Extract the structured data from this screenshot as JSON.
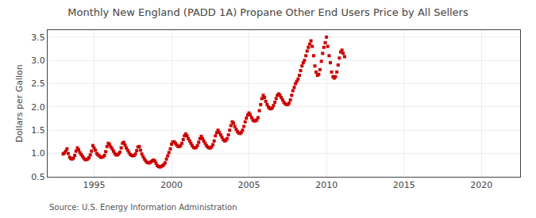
{
  "chart_data": {
    "type": "scatter",
    "title": "Monthly New England (PADD 1A) Propane Other End Users Price by All Sellers",
    "ylabel": "Dollars per Gallon",
    "annotations": [
      "Source: U.S. Energy Information Administration"
    ],
    "color": "#cc0000",
    "marker": "square",
    "grid": true,
    "xlim": [
      1992.0,
      2022.5
    ],
    "ylim": [
      0.5,
      3.65
    ],
    "xticks": [
      1995,
      2000,
      2005,
      2010,
      2015,
      2020
    ],
    "yticks": [
      0.5,
      {
        "value": 1.0,
        "label": "1.0"
      },
      1.5,
      {
        "value": 2.0,
        "label": "2.0"
      },
      2.5,
      {
        "value": 3.0,
        "label": "3.0"
      },
      3.5
    ],
    "x": [
      1993.0,
      1993.08,
      1993.17,
      1993.25,
      1993.33,
      1993.42,
      1993.5,
      1993.58,
      1993.67,
      1993.75,
      1993.83,
      1993.92,
      1994.0,
      1994.08,
      1994.17,
      1994.25,
      1994.33,
      1994.42,
      1994.5,
      1994.58,
      1994.67,
      1994.75,
      1994.83,
      1994.92,
      1995.0,
      1995.08,
      1995.17,
      1995.25,
      1995.33,
      1995.42,
      1995.5,
      1995.58,
      1995.67,
      1995.75,
      1995.83,
      1995.92,
      1996.0,
      1996.08,
      1996.17,
      1996.25,
      1996.33,
      1996.42,
      1996.5,
      1996.58,
      1996.67,
      1996.75,
      1996.83,
      1996.92,
      1997.0,
      1997.08,
      1997.17,
      1997.25,
      1997.33,
      1997.42,
      1997.5,
      1997.58,
      1997.67,
      1997.75,
      1997.83,
      1997.92,
      1998.0,
      1998.08,
      1998.17,
      1998.25,
      1998.33,
      1998.42,
      1998.5,
      1998.58,
      1998.67,
      1998.75,
      1998.83,
      1998.92,
      1999.0,
      1999.08,
      1999.17,
      1999.25,
      1999.33,
      1999.42,
      1999.5,
      1999.58,
      1999.67,
      1999.75,
      1999.83,
      1999.92,
      2000.0,
      2000.08,
      2000.17,
      2000.25,
      2000.33,
      2000.42,
      2000.5,
      2000.58,
      2000.67,
      2000.75,
      2000.83,
      2000.92,
      2001.0,
      2001.08,
      2001.17,
      2001.25,
      2001.33,
      2001.42,
      2001.5,
      2001.58,
      2001.67,
      2001.75,
      2001.83,
      2001.92,
      2002.0,
      2002.08,
      2002.17,
      2002.25,
      2002.33,
      2002.42,
      2002.5,
      2002.58,
      2002.67,
      2002.75,
      2002.83,
      2002.92,
      2003.0,
      2003.08,
      2003.17,
      2003.25,
      2003.33,
      2003.42,
      2003.5,
      2003.58,
      2003.67,
      2003.75,
      2003.83,
      2003.92,
      2004.0,
      2004.08,
      2004.17,
      2004.25,
      2004.33,
      2004.42,
      2004.5,
      2004.58,
      2004.67,
      2004.75,
      2004.83,
      2004.92,
      2005.0,
      2005.08,
      2005.17,
      2005.25,
      2005.33,
      2005.42,
      2005.5,
      2005.58,
      2005.67,
      2005.75,
      2005.83,
      2005.92,
      2006.0,
      2006.08,
      2006.17,
      2006.25,
      2006.33,
      2006.42,
      2006.5,
      2006.58,
      2006.67,
      2006.75,
      2006.83,
      2006.92,
      2007.0,
      2007.08,
      2007.17,
      2007.25,
      2007.33,
      2007.42,
      2007.5,
      2007.58,
      2007.67,
      2007.75,
      2007.83,
      2007.92,
      2008.0,
      2008.08,
      2008.17,
      2008.25,
      2008.33,
      2008.42,
      2008.5,
      2008.58,
      2008.67,
      2008.75,
      2008.83,
      2008.92,
      2009.0,
      2009.08,
      2009.17,
      2009.25,
      2009.33,
      2009.42,
      2009.5,
      2009.58,
      2009.67,
      2009.75,
      2009.83,
      2009.92,
      2010.0,
      2010.08,
      2010.17,
      2010.25,
      2010.33,
      2010.42,
      2010.5,
      2010.58,
      2010.67,
      2010.75,
      2010.83,
      2010.92,
      2011.0,
      2011.08,
      2011.17
    ],
    "values": [
      0.99,
      1.01,
      1.05,
      1.1,
      1.0,
      0.92,
      0.89,
      0.88,
      0.9,
      0.96,
      1.05,
      1.12,
      1.08,
      1.02,
      0.98,
      0.94,
      0.9,
      0.87,
      0.87,
      0.88,
      0.91,
      0.97,
      1.05,
      1.17,
      1.12,
      1.07,
      1.0,
      0.97,
      0.95,
      0.92,
      0.92,
      0.93,
      0.96,
      1.04,
      1.15,
      1.22,
      1.19,
      1.14,
      1.1,
      1.05,
      1.0,
      0.97,
      0.97,
      0.99,
      1.03,
      1.12,
      1.22,
      1.24,
      1.18,
      1.12,
      1.07,
      1.02,
      0.98,
      0.96,
      0.95,
      0.96,
      0.99,
      1.06,
      1.14,
      1.15,
      1.07,
      0.99,
      0.93,
      0.88,
      0.84,
      0.81,
      0.8,
      0.8,
      0.82,
      0.84,
      0.86,
      0.84,
      0.79,
      0.74,
      0.72,
      0.71,
      0.72,
      0.74,
      0.76,
      0.8,
      0.88,
      0.95,
      1.02,
      1.1,
      1.2,
      1.25,
      1.25,
      1.22,
      1.18,
      1.15,
      1.15,
      1.17,
      1.22,
      1.3,
      1.38,
      1.42,
      1.38,
      1.32,
      1.27,
      1.22,
      1.17,
      1.13,
      1.12,
      1.13,
      1.17,
      1.24,
      1.32,
      1.37,
      1.32,
      1.27,
      1.22,
      1.17,
      1.14,
      1.12,
      1.12,
      1.14,
      1.19,
      1.27,
      1.38,
      1.45,
      1.5,
      1.45,
      1.4,
      1.35,
      1.3,
      1.27,
      1.28,
      1.32,
      1.4,
      1.5,
      1.6,
      1.68,
      1.65,
      1.58,
      1.52,
      1.47,
      1.44,
      1.43,
      1.45,
      1.5,
      1.58,
      1.68,
      1.76,
      1.83,
      1.87,
      1.83,
      1.77,
      1.72,
      1.7,
      1.7,
      1.72,
      1.77,
      1.92,
      2.05,
      2.18,
      2.25,
      2.2,
      2.12,
      2.05,
      2.0,
      1.97,
      1.96,
      1.98,
      2.03,
      2.1,
      2.18,
      2.25,
      2.28,
      2.25,
      2.2,
      2.15,
      2.1,
      2.07,
      2.05,
      2.05,
      2.08,
      2.15,
      2.25,
      2.35,
      2.42,
      2.5,
      2.55,
      2.6,
      2.68,
      2.78,
      2.88,
      2.95,
      3.0,
      3.1,
      3.2,
      3.28,
      3.35,
      3.42,
      3.3,
      3.1,
      2.88,
      2.75,
      2.68,
      2.7,
      2.8,
      2.98,
      3.15,
      3.28,
      3.38,
      3.5,
      3.3,
      3.1,
      2.95,
      2.75,
      2.65,
      2.62,
      2.65,
      2.75,
      2.9,
      3.05,
      3.18,
      3.22,
      3.15,
      3.08
    ]
  }
}
